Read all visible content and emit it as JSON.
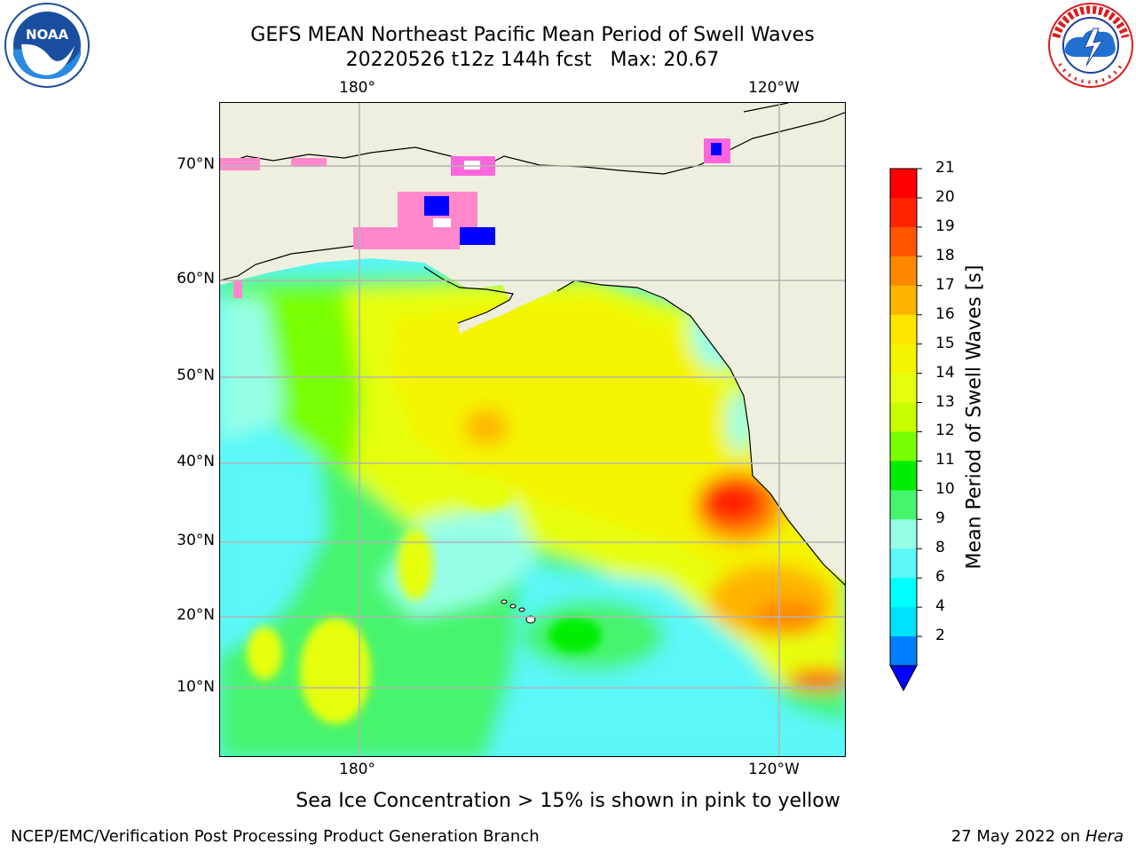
{
  "title": {
    "line1": "GEFS MEAN Northeast Pacific Mean Period of Swell Waves",
    "line2": "20220526 t12z 144h fcst   Max: 20.67"
  },
  "logos": {
    "left": "NOAA",
    "right": "NATIONAL WEATHER SERVICE"
  },
  "map": {
    "lon_labels_top": [
      "180°",
      "120°W"
    ],
    "lon_labels_bottom": [
      "180°",
      "120°W"
    ],
    "lat_labels": [
      "70°N",
      "60°N",
      "50°N",
      "40°N",
      "30°N",
      "20°N",
      "10°N"
    ],
    "land_color": "#efefdf",
    "grid_color": "#b4b4b4"
  },
  "colorbar": {
    "label": "Mean Period of Swell Waves [s]",
    "ticks": [
      "21",
      "20",
      "19",
      "18",
      "17",
      "16",
      "15",
      "14",
      "13",
      "12",
      "11",
      "10",
      "9",
      "8",
      "6",
      "4",
      "2"
    ],
    "colors": [
      "#ff0000",
      "#ff2200",
      "#ff5500",
      "#ff8800",
      "#ffb400",
      "#ffe600",
      "#f4f400",
      "#e6ff10",
      "#c8ff00",
      "#78ff00",
      "#00ee00",
      "#46f46e",
      "#96ffe6",
      "#5af8f8",
      "#00ffff",
      "#00e0ff",
      "#0080ff"
    ],
    "under_color": "#0000ff"
  },
  "annotations": {
    "ice_note": "Sea Ice Concentration > 15% is shown in pink to yellow"
  },
  "footer": {
    "left": "NCEP/EMC/Verification Post Processing Product Generation Branch",
    "date": "27 May 2022 on",
    "host": "Hera"
  }
}
